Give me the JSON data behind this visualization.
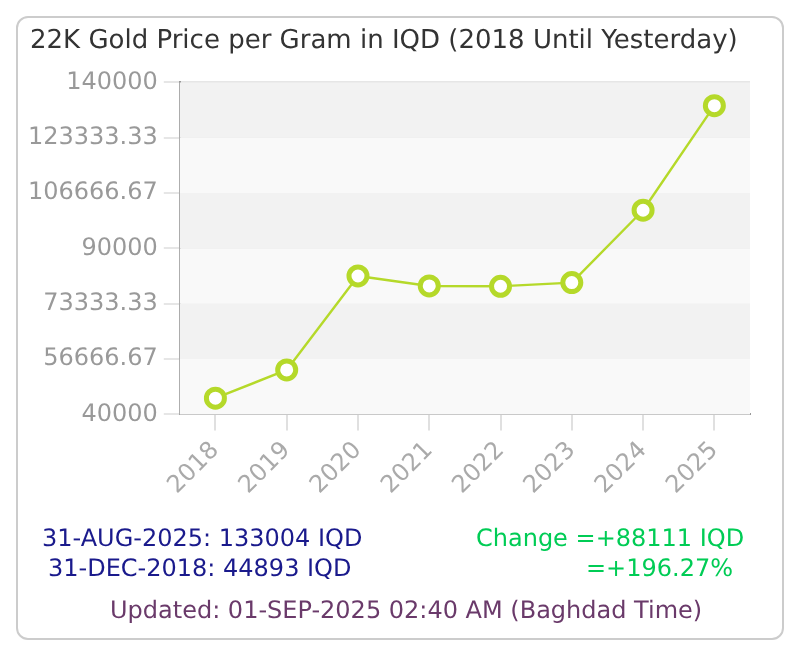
{
  "chart_data": {
    "type": "line",
    "title": "22K Gold Price per Gram in IQD (2018 Until Yesterday)",
    "categories": [
      "2018",
      "2019",
      "2020",
      "2021",
      "2022",
      "2023",
      "2024",
      "2025"
    ],
    "series": [
      {
        "color": "#b5d92a",
        "values": [
          44893,
          53400,
          81700,
          78700,
          78600,
          79700,
          101500,
          133004
        ]
      }
    ],
    "ylim": [
      40000,
      140000
    ],
    "yticks": [
      40000,
      56666.67,
      73333.33,
      90000,
      106666.67,
      123333.33,
      140000
    ],
    "grid": true,
    "marker": "circle",
    "legend": false,
    "annotations": [
      "31-AUG-2025: 133004 IQD",
      "31-DEC-2018: 44893 IQD",
      "Change =+88111 IQD",
      "=+196.27%",
      "Updated: 01-SEP-2025 02:40 AM (Baghdad Time)"
    ]
  }
}
